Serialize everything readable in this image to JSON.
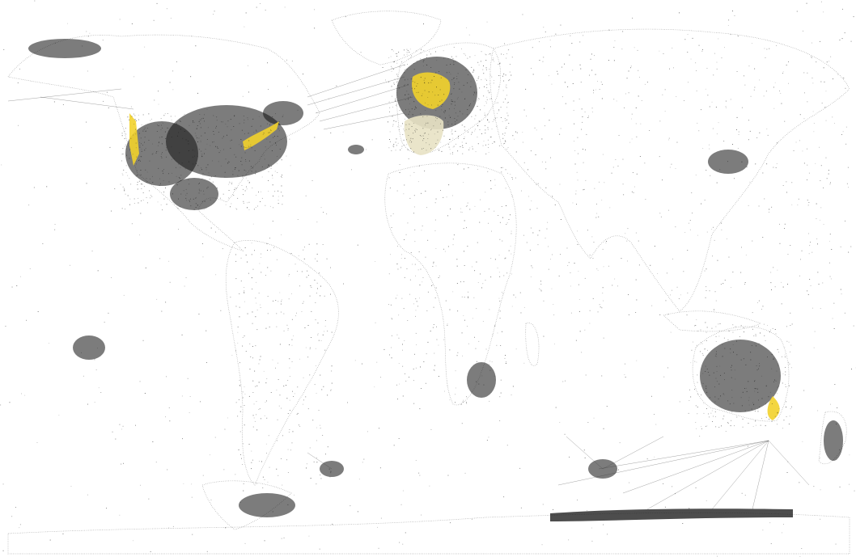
{
  "map": {
    "projection": "equirectangular",
    "background_color": "#ffffff",
    "point_color": "#111111",
    "highlight_color": "#f2d22b",
    "regions": [
      {
        "name": "north-america",
        "density": "high",
        "highlight": true
      },
      {
        "name": "europe",
        "density": "very-high",
        "highlight": true
      },
      {
        "name": "south-america",
        "density": "low",
        "highlight": false
      },
      {
        "name": "africa",
        "density": "low",
        "highlight": false
      },
      {
        "name": "asia",
        "density": "low",
        "highlight": false
      },
      {
        "name": "australia",
        "density": "medium",
        "highlight": true
      },
      {
        "name": "new-zealand",
        "density": "medium",
        "highlight": false
      },
      {
        "name": "antarctica",
        "density": "medium",
        "highlight": false
      }
    ],
    "flight_route_hubs": [
      "europe",
      "north-america-east",
      "sydney",
      "antarctica"
    ]
  }
}
